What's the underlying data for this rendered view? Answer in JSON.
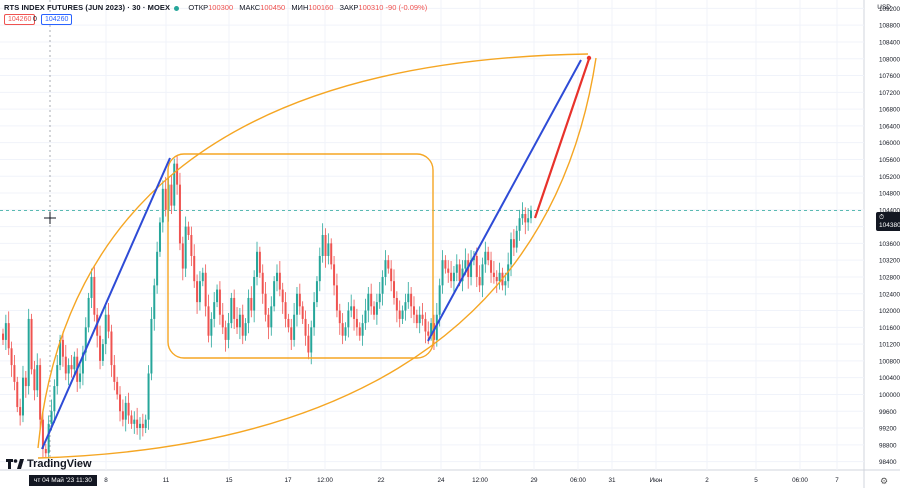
{
  "header": {
    "title": "RTS INDEX FUTURES (JUN 2023) · 30 · MOEX",
    "open_label": "ОТКР",
    "open_value": "100300",
    "high_label": "МАКС",
    "high_value": "100450",
    "low_label": "МИН",
    "low_value": "100160",
    "close_label": "ЗАКР",
    "close_value": "100310",
    "change": "-90 (-0.09%)",
    "sell_price": "104260",
    "spread": "0",
    "buy_price": "104260"
  },
  "currency": "USD",
  "brand": "TradingView",
  "crosshair_date": "чт 04 Май '23   11:30",
  "current_price_label": "104380",
  "colors": {
    "up": "#26a69a",
    "down": "#ef5350",
    "orange": "#f5a623",
    "blue": "#2e4bd6",
    "red": "#e8322b",
    "grid": "#f0f3fa",
    "text": "#131722"
  },
  "chart_data": {
    "type": "candlestick",
    "ylim": [
      98200,
      109400
    ],
    "price_ticks": [
      "109200",
      "108800",
      "108400",
      "108000",
      "107600",
      "107200",
      "106800",
      "106400",
      "106000",
      "105600",
      "105200",
      "104800",
      "104400",
      "104000",
      "103600",
      "103200",
      "102800",
      "102400",
      "102000",
      "101600",
      "101200",
      "100800",
      "100400",
      "100000",
      "99600",
      "99200",
      "98800",
      "98400"
    ],
    "time_ticks": [
      "8",
      "11",
      "15",
      "17",
      "12:00",
      "22",
      "24",
      "12:00",
      "29",
      "06:00",
      "31",
      "Июн",
      "2",
      "5",
      "06:00",
      "7"
    ],
    "current_price": 104380,
    "close_series": [
      101300,
      101700,
      101100,
      100700,
      100300,
      99700,
      99500,
      100400,
      100200,
      101800,
      100600,
      100100,
      100700,
      99400,
      98700,
      98600,
      99300,
      99600,
      100200,
      100700,
      101300,
      100900,
      100500,
      100700,
      100600,
      100900,
      100300,
      100500,
      101000,
      101600,
      102300,
      102800,
      101900,
      101400,
      100800,
      101200,
      101900,
      101500,
      100700,
      100300,
      100000,
      99600,
      99400,
      99800,
      99500,
      99300,
      99400,
      99200,
      99300,
      99200,
      99400,
      100500,
      101800,
      102600,
      103400,
      104100,
      104900,
      104400,
      105000,
      104500,
      105500,
      105000,
      103600,
      103000,
      104000,
      103800,
      103300,
      102700,
      102200,
      102700,
      102900,
      102100,
      101400,
      101800,
      102200,
      102500,
      101900,
      101600,
      101300,
      101700,
      102300,
      101800,
      101600,
      101900,
      101400,
      101700,
      102300,
      102000,
      102800,
      103400,
      102900,
      102400,
      101900,
      101600,
      102100,
      102700,
      102900,
      102500,
      102200,
      101800,
      101600,
      101300,
      101900,
      102400,
      102100,
      101800,
      101400,
      101000,
      101600,
      102200,
      102700,
      103300,
      103800,
      103300,
      103600,
      103100,
      102600,
      102000,
      101700,
      101400,
      101600,
      102000,
      102100,
      101800,
      101600,
      101400,
      101700,
      102000,
      102400,
      102100,
      101900,
      102200,
      102400,
      102800,
      103200,
      103000,
      102700,
      102300,
      102000,
      101800,
      102000,
      102200,
      102400,
      102100,
      101900,
      101700,
      101900,
      101800,
      101500,
      101400,
      101700,
      101300,
      101900,
      102600,
      103200,
      103000,
      102900,
      102700,
      102900,
      103100,
      102700,
      103000,
      103200,
      102800,
      103200,
      103300,
      102800,
      102600,
      103100,
      103400,
      103200,
      102900,
      102800,
      102700,
      102900,
      102600,
      102700,
      103100,
      103700,
      103500,
      103900,
      104200,
      104300,
      104100,
      104200,
      104380
    ]
  },
  "drawings": [
    {
      "name": "blue-trendline-left",
      "color": "blue",
      "from": {
        "date": "3 мая",
        "price": 98600
      },
      "to": {
        "date": "11 мая",
        "price": 105900
      }
    },
    {
      "name": "blue-trendline-right",
      "color": "blue",
      "from": {
        "date": "23 мая",
        "price": 101300
      },
      "to": {
        "date": "30 мая",
        "price": 108300
      }
    },
    {
      "name": "red-projection-line",
      "color": "red",
      "from": {
        "date": "29 мая",
        "price": 104400
      },
      "to": {
        "date": "30 мая",
        "price": 108300
      }
    },
    {
      "name": "orange-range-rectangle",
      "color": "orange",
      "from": {
        "date": "11 мая",
        "price": 101000
      },
      "to": {
        "date": "23 мая",
        "price": 105700
      }
    },
    {
      "name": "orange-upper-arc",
      "color": "orange"
    },
    {
      "name": "orange-lower-arc",
      "color": "orange"
    }
  ]
}
